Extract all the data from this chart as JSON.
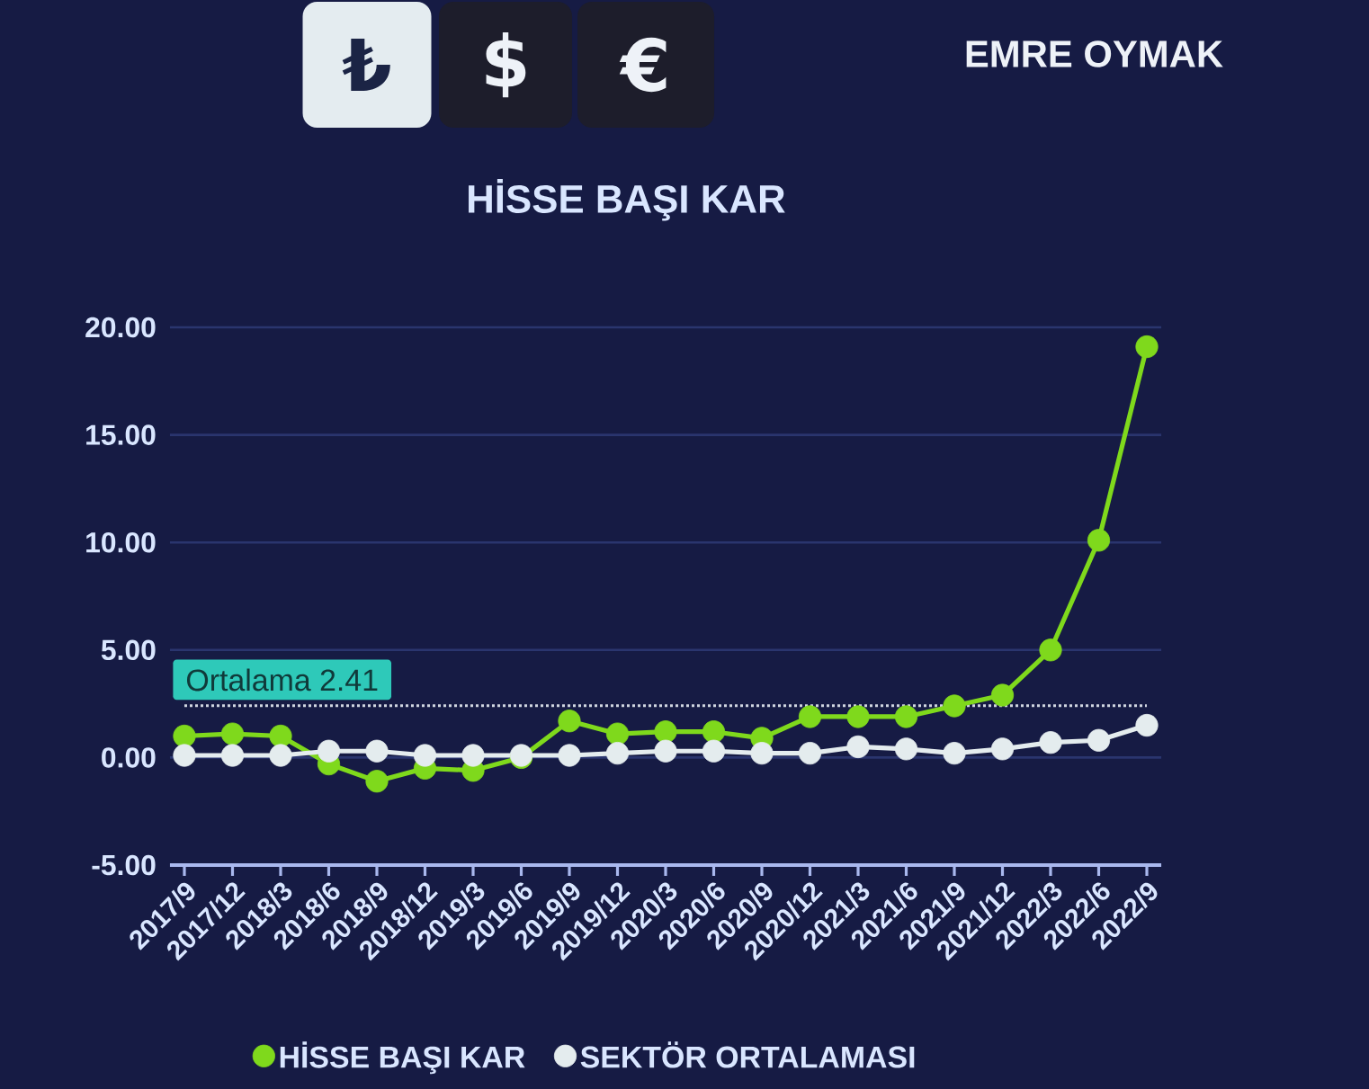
{
  "chart_data": {
    "type": "line",
    "title": "HİSSE BAŞI KAR",
    "annotations": [
      "₺",
      "$",
      "€",
      "EMRE OYMAK"
    ],
    "categories": [
      "2017/9",
      "2017/12",
      "2018/3",
      "2018/6",
      "2018/9",
      "2018/12",
      "2019/3",
      "2019/6",
      "2019/9",
      "2019/12",
      "2020/3",
      "2020/6",
      "2020/9",
      "2020/12",
      "2021/3",
      "2021/6",
      "2021/9",
      "2021/12",
      "2022/3",
      "2022/6",
      "2022/9"
    ],
    "series": [
      {
        "name": "HİSSE BAŞI KAR",
        "color": "#7FD91C",
        "values": [
          1.0,
          1.1,
          1.0,
          -0.3,
          -1.1,
          -0.5,
          -0.6,
          0.0,
          1.7,
          1.1,
          1.2,
          1.2,
          0.9,
          1.9,
          1.9,
          1.9,
          2.4,
          2.9,
          5.0,
          10.1,
          19.1
        ]
      },
      {
        "name": "SEKTÖR ORTALAMASI",
        "color": "#E4ECEE",
        "values": [
          0.1,
          0.1,
          0.1,
          0.3,
          0.3,
          0.1,
          0.1,
          0.1,
          0.1,
          0.2,
          0.3,
          0.3,
          0.2,
          0.2,
          0.5,
          0.4,
          0.2,
          0.4,
          0.7,
          0.8,
          1.5
        ]
      }
    ],
    "ylim": [
      -5,
      20
    ],
    "yticks": [
      {
        "value": -5,
        "label": "-5.00"
      },
      {
        "value": 0,
        "label": "0.00"
      },
      {
        "value": 5,
        "label": "5.00"
      },
      {
        "value": 10,
        "label": "10.00"
      },
      {
        "value": 15,
        "label": "15.00"
      },
      {
        "value": 20,
        "label": "20.00"
      }
    ],
    "grid": "y",
    "legend": "bottom",
    "marker": "circle",
    "ref_lines": [
      {
        "axis": "y",
        "value": 2.41,
        "label": "Ortalama 2.41",
        "color": "#D0D6E0",
        "line_style": "dotted"
      }
    ]
  }
}
